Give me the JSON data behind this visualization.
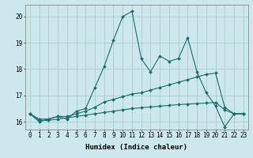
{
  "xlabel": "Humidex (Indice chaleur)",
  "bg_color": "#cce8ee",
  "grid_color": "#aacccc",
  "line_color": "#1a6b6b",
  "xlim": [
    -0.5,
    23.5
  ],
  "ylim": [
    15.7,
    20.45
  ],
  "yticks": [
    16,
    17,
    18,
    19,
    20
  ],
  "xticks": [
    0,
    1,
    2,
    3,
    4,
    5,
    6,
    7,
    8,
    9,
    10,
    11,
    12,
    13,
    14,
    15,
    16,
    17,
    18,
    19,
    20,
    21,
    22,
    23
  ],
  "line1_x": [
    0,
    1,
    2,
    3,
    4,
    5,
    6,
    7,
    8,
    9,
    10,
    11,
    12,
    13,
    14,
    15,
    16,
    17,
    18,
    19,
    20,
    21,
    22,
    23
  ],
  "line1_y": [
    16.3,
    16.0,
    16.1,
    16.2,
    16.1,
    16.4,
    16.5,
    17.3,
    18.1,
    19.1,
    20.0,
    20.2,
    18.4,
    17.9,
    18.5,
    18.3,
    18.4,
    19.2,
    17.9,
    17.1,
    16.6,
    15.8,
    16.3,
    16.3
  ],
  "line2_x": [
    0,
    1,
    2,
    3,
    4,
    5,
    6,
    7,
    8,
    9,
    10,
    11,
    12,
    13,
    14,
    15,
    16,
    17,
    18,
    19,
    20,
    21,
    22,
    23
  ],
  "line2_y": [
    16.3,
    16.1,
    16.1,
    16.2,
    16.2,
    16.3,
    16.4,
    16.55,
    16.75,
    16.85,
    16.95,
    17.05,
    17.1,
    17.2,
    17.3,
    17.4,
    17.5,
    17.6,
    17.7,
    17.8,
    17.85,
    16.55,
    16.3,
    16.3
  ],
  "line3_x": [
    0,
    1,
    2,
    3,
    4,
    5,
    6,
    7,
    8,
    9,
    10,
    11,
    12,
    13,
    14,
    15,
    16,
    17,
    18,
    19,
    20,
    21,
    22,
    23
  ],
  "line3_y": [
    16.3,
    16.05,
    16.05,
    16.1,
    16.15,
    16.2,
    16.25,
    16.3,
    16.35,
    16.4,
    16.45,
    16.5,
    16.53,
    16.56,
    16.59,
    16.62,
    16.65,
    16.67,
    16.69,
    16.71,
    16.73,
    16.45,
    16.3,
    16.3
  ],
  "tick_fontsize": 5.5,
  "xlabel_fontsize": 6.5
}
